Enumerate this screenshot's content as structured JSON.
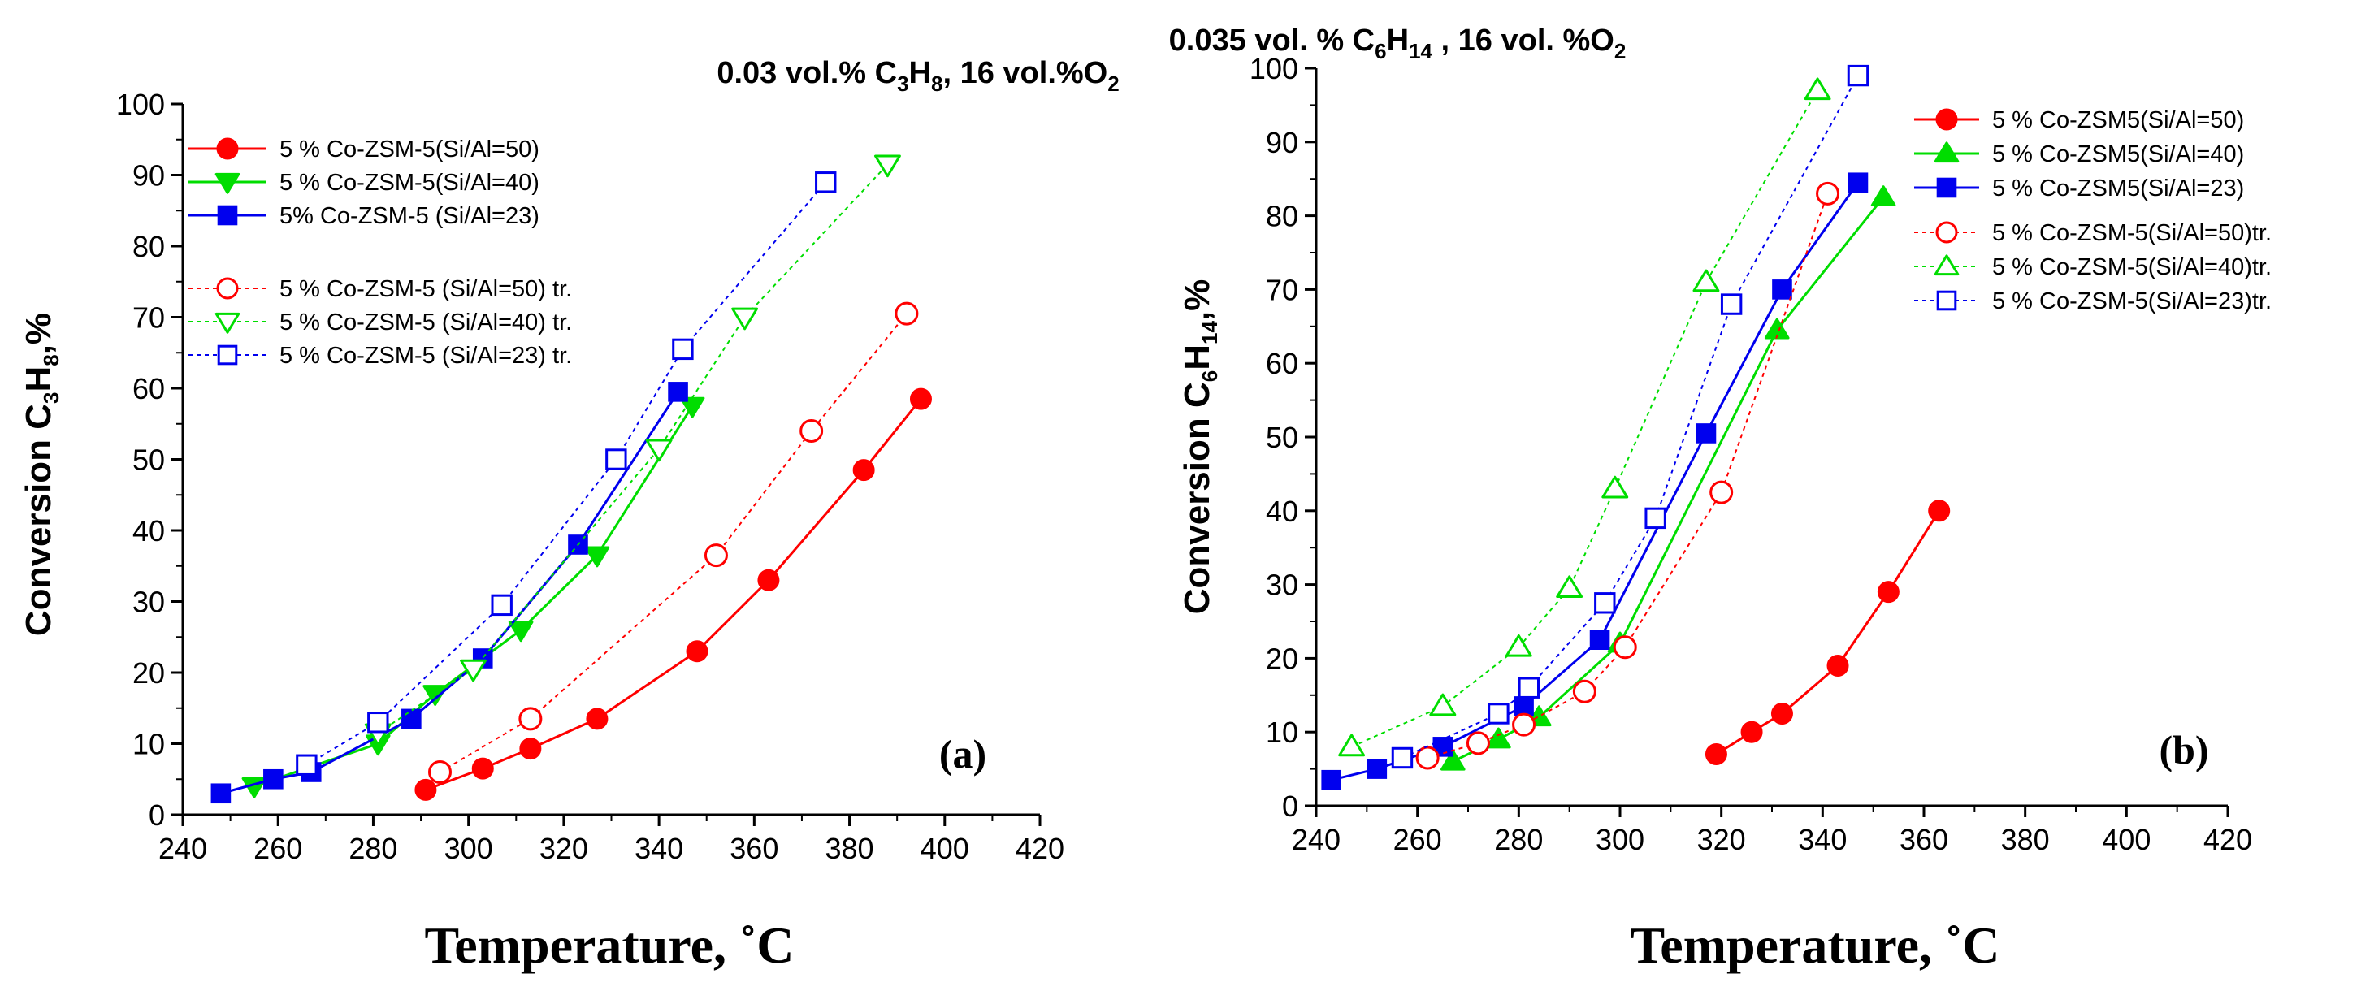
{
  "chart_data": [
    {
      "type": "line",
      "panel_label": "(a)",
      "title_parts": [
        "0.03 vol.% C",
        "3",
        "H",
        "8",
        ",  16 vol.%O",
        "2"
      ],
      "ylabel_parts": [
        "Conversion C",
        "3",
        "H",
        "8",
        ",%"
      ],
      "xlabel": "Temperature, ˚C",
      "xlim": [
        240,
        420
      ],
      "ylim": [
        0,
        100
      ],
      "xticks": [
        240,
        260,
        280,
        300,
        320,
        340,
        360,
        380,
        400,
        420
      ],
      "yticks": [
        0,
        10,
        20,
        30,
        40,
        50,
        60,
        70,
        80,
        90,
        100
      ],
      "legend": "top-left",
      "series": [
        {
          "name": "5 % Co-ZSM-5(Si/Al=50)",
          "color": "#ff0000",
          "marker": "circle",
          "filled": true,
          "dash": false,
          "x": [
            291,
            303,
            313,
            327,
            348,
            363,
            383,
            395
          ],
          "y": [
            3.5,
            6.5,
            9.3,
            13.5,
            23,
            33,
            48.5,
            58.5
          ]
        },
        {
          "name": "5 % Co-ZSM-5(Si/Al=40)",
          "color": "#00dd00",
          "marker": "triangle-down",
          "filled": true,
          "dash": false,
          "x": [
            255,
            281,
            293,
            311,
            327,
            347
          ],
          "y": [
            4,
            10,
            17,
            26,
            36.5,
            57.5
          ]
        },
        {
          "name": "5% Co-ZSM-5 (Si/Al=23)",
          "color": "#0000ee",
          "marker": "square",
          "filled": true,
          "dash": false,
          "x": [
            248,
            259,
            267,
            288,
            303,
            323,
            344
          ],
          "y": [
            3,
            5,
            6,
            13.5,
            22,
            38,
            59.5
          ]
        },
        {
          "name": "5 % Co-ZSM-5 (Si/Al=50) tr.",
          "color": "#ff0000",
          "marker": "circle",
          "filled": false,
          "dash": true,
          "x": [
            294,
            313,
            352,
            372,
            392
          ],
          "y": [
            6,
            13.5,
            36.5,
            54,
            70.5
          ]
        },
        {
          "name": "5 % Co-ZSM-5 (Si/Al=40) tr.",
          "color": "#00dd00",
          "marker": "triangle-down",
          "filled": false,
          "dash": true,
          "x": [
            281,
            301,
            340,
            358,
            388
          ],
          "y": [
            11.5,
            20.5,
            51.5,
            70,
            91.5
          ]
        },
        {
          "name": "5 % Co-ZSM-5 (Si/Al=23) tr.",
          "color": "#0000ee",
          "marker": "square",
          "filled": false,
          "dash": true,
          "x": [
            266,
            281,
            307,
            331,
            345,
            375
          ],
          "y": [
            7,
            13,
            29.5,
            50,
            65.5,
            89
          ]
        }
      ]
    },
    {
      "type": "line",
      "panel_label": "(b)",
      "title_parts": [
        "0.035 vol. % C",
        "6",
        "H",
        "14",
        " , 16 vol. %O",
        "2"
      ],
      "ylabel_parts": [
        "Conversion C",
        "6",
        "H",
        "14",
        ",%"
      ],
      "xlabel": "Temperature, ˚C",
      "xlim": [
        240,
        420
      ],
      "ylim": [
        0,
        100
      ],
      "xticks": [
        240,
        260,
        280,
        300,
        320,
        340,
        360,
        380,
        400,
        420
      ],
      "yticks": [
        0,
        10,
        20,
        30,
        40,
        50,
        60,
        70,
        80,
        90,
        100
      ],
      "legend": "top-right",
      "series": [
        {
          "name": "5 % Co-ZSM5(Si/Al=50)",
          "color": "#ff0000",
          "marker": "circle",
          "filled": true,
          "dash": false,
          "x": [
            319,
            326,
            332,
            343,
            353,
            363
          ],
          "y": [
            7,
            10,
            12.5,
            19,
            29,
            40
          ]
        },
        {
          "name": "5 % Co-ZSM5(Si/Al=40)",
          "color": "#00dd00",
          "marker": "triangle-up",
          "filled": true,
          "dash": false,
          "x": [
            267,
            276,
            284,
            300,
            331,
            352
          ],
          "y": [
            6,
            9,
            12,
            22,
            64.5,
            82.5
          ]
        },
        {
          "name": "5 % Co-ZSM5(Si/Al=23)",
          "color": "#0000ee",
          "marker": "square",
          "filled": true,
          "dash": false,
          "x": [
            243,
            252,
            265,
            281,
            296,
            317,
            332,
            347
          ],
          "y": [
            3.5,
            5,
            8,
            13.5,
            22.5,
            50.5,
            70,
            84.5
          ]
        },
        {
          "name": "5 % Co-ZSM-5(Si/Al=50)tr.",
          "color": "#ff0000",
          "marker": "circle",
          "filled": false,
          "dash": true,
          "x": [
            262,
            272,
            281,
            293,
            301,
            320,
            341
          ],
          "y": [
            6.5,
            8.5,
            11,
            15.5,
            21.5,
            42.5,
            83
          ]
        },
        {
          "name": "5 % Co-ZSM-5(Si/Al=40)tr.",
          "color": "#00dd00",
          "marker": "triangle-up",
          "filled": false,
          "dash": true,
          "x": [
            247,
            265,
            280,
            290,
            299,
            317,
            339
          ],
          "y": [
            8,
            13.5,
            21.5,
            29.5,
            43,
            71,
            97
          ]
        },
        {
          "name": "5 % Co-ZSM-5(Si/Al=23)tr.",
          "color": "#0000ee",
          "marker": "square",
          "filled": false,
          "dash": true,
          "x": [
            257,
            276,
            282,
            297,
            307,
            322,
            347
          ],
          "y": [
            6.5,
            12.5,
            16,
            27.5,
            39,
            68,
            99
          ]
        }
      ]
    }
  ]
}
